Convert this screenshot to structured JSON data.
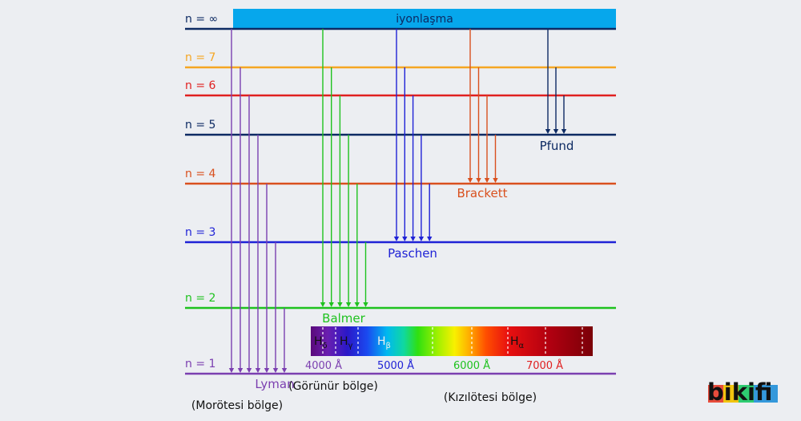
{
  "diagram": {
    "ionization_label": "iyonlaşma",
    "levels": [
      {
        "id": "inf",
        "label": "n = ∞",
        "color": "#0d2a63"
      },
      {
        "id": "7",
        "label": "n = 7",
        "color": "#f5a623"
      },
      {
        "id": "6",
        "label": "n = 6",
        "color": "#e02020"
      },
      {
        "id": "5",
        "label": "n = 5",
        "color": "#0d2a63"
      },
      {
        "id": "4",
        "label": "n = 4",
        "color": "#d9501e"
      },
      {
        "id": "3",
        "label": "n = 3",
        "color": "#1f22d6"
      },
      {
        "id": "2",
        "label": "n = 2",
        "color": "#1ec21e"
      },
      {
        "id": "1",
        "label": "n = 1",
        "color": "#7b3fb0"
      }
    ],
    "series": [
      {
        "id": "lyman",
        "name": "Lyman",
        "color": "#7b3fb0",
        "target": "1",
        "from": [
          "inf",
          "7",
          "6",
          "5",
          "4",
          "3",
          "2"
        ]
      },
      {
        "id": "balmer",
        "name": "Balmer",
        "color": "#1ec21e",
        "target": "2",
        "from": [
          "inf",
          "7",
          "6",
          "5",
          "4",
          "3"
        ]
      },
      {
        "id": "paschen",
        "name": "Paschen",
        "color": "#1f22d6",
        "target": "3",
        "from": [
          "inf",
          "7",
          "6",
          "5",
          "4"
        ]
      },
      {
        "id": "brackett",
        "name": "Brackett",
        "color": "#d9501e",
        "target": "4",
        "from": [
          "inf",
          "7",
          "6",
          "5"
        ]
      },
      {
        "id": "pfund",
        "name": "Pfund",
        "color": "#0d2a63",
        "target": "5",
        "from": [
          "inf",
          "7",
          "6"
        ]
      }
    ],
    "spectrum": {
      "lines": [
        {
          "id": "h-delta",
          "symbol": "H",
          "sub": "δ"
        },
        {
          "id": "h-gamma",
          "symbol": "H",
          "sub": "γ"
        },
        {
          "id": "h-beta",
          "symbol": "H",
          "sub": "β"
        },
        {
          "id": "h-alpha",
          "symbol": "H",
          "sub": "α"
        }
      ],
      "wavelengths": [
        {
          "label": "4000 Å",
          "color": "#7b3fb0"
        },
        {
          "label": "5000 Å",
          "color": "#1f22d6"
        },
        {
          "label": "6000 Å",
          "color": "#1ec21e"
        },
        {
          "label": "7000 Å",
          "color": "#e02020"
        }
      ]
    },
    "regions": {
      "uv": "(Morötesi bölge)",
      "visible": "(Görünür bölge)",
      "ir": "(Kızılötesi bölge)"
    }
  },
  "logo": {
    "text": "bikifi",
    "colors": [
      "#e74c3c",
      "#f1c40f",
      "#2ecc71",
      "#3498db"
    ]
  }
}
